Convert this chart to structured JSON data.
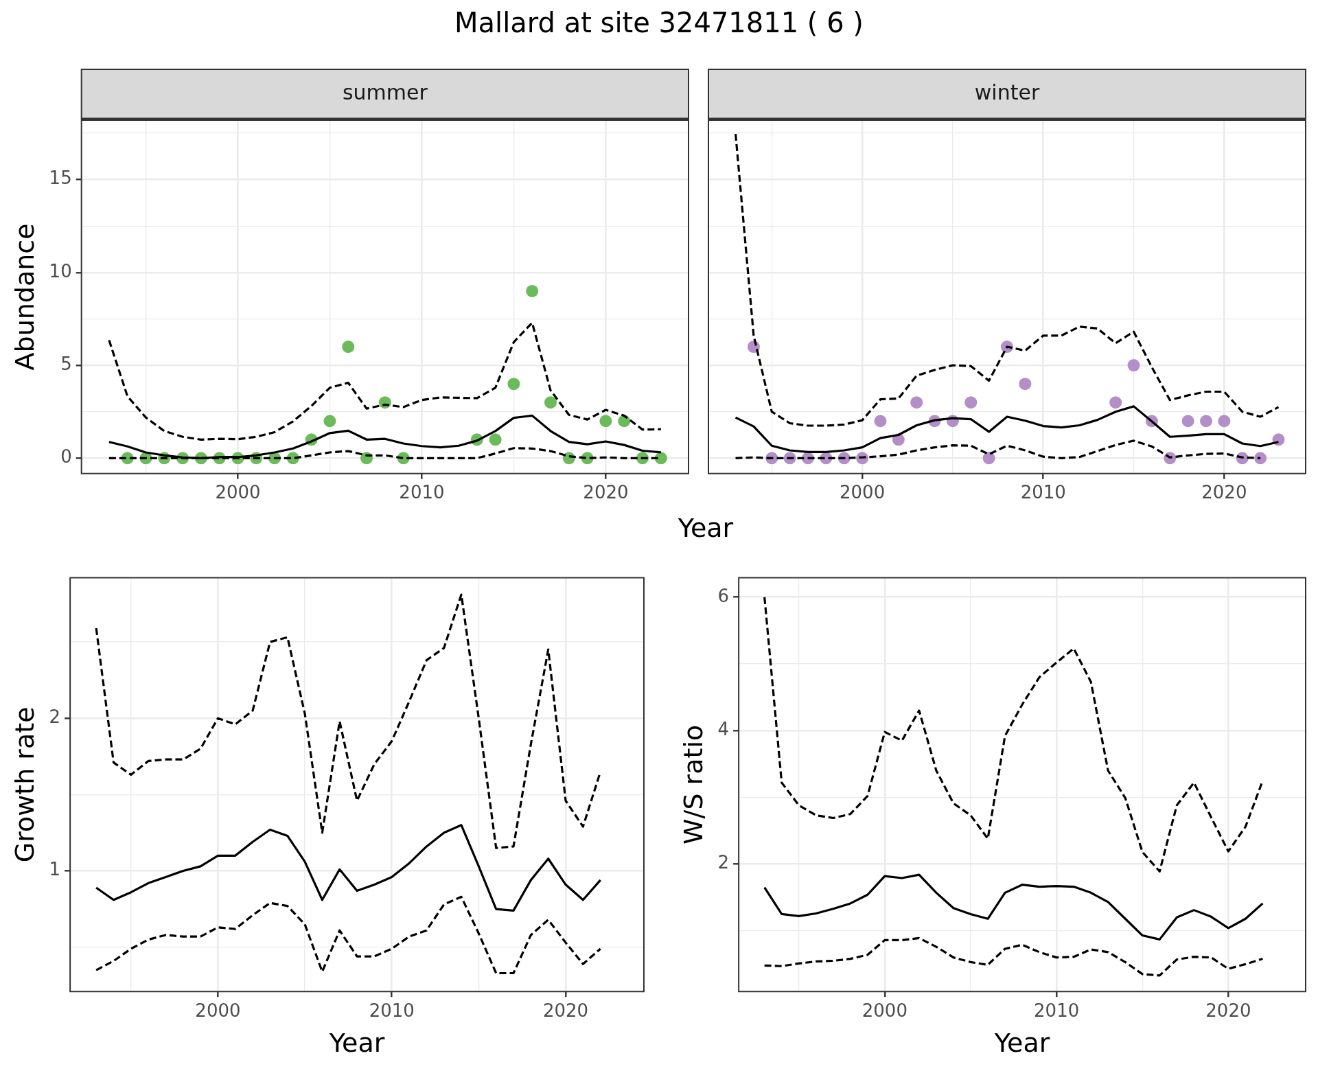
{
  "chart_data": [
    {
      "type": "line",
      "title": "Mallard at site 32471811 ( 6 )",
      "subtitle": "summer",
      "xlabel": "Year",
      "ylabel": "Abundance",
      "grid": true,
      "x": [
        1993,
        1994,
        1995,
        1996,
        1997,
        1998,
        1999,
        2000,
        2001,
        2002,
        2003,
        2004,
        2005,
        2006,
        2007,
        2008,
        2009,
        2010,
        2011,
        2012,
        2013,
        2014,
        2015,
        2016,
        2017,
        2018,
        2019,
        2020,
        2021,
        2022,
        2023
      ],
      "xlim": [
        1991.5,
        2024.5
      ],
      "xticks": [
        {
          "value": 1995,
          "label": null
        },
        2000,
        {
          "value": 2005,
          "label": null
        },
        2010,
        {
          "value": 2015,
          "label": null
        },
        2020
      ],
      "ylim": [
        -0.83,
        18.2
      ],
      "yticks": [
        0,
        {
          "value": 2.5,
          "label": null
        },
        5,
        {
          "value": 7.5,
          "label": null
        },
        10,
        {
          "value": 12.5,
          "label": null
        },
        15,
        {
          "value": 17.5,
          "label": null
        }
      ],
      "series": [
        {
          "type": "scatter",
          "marker": "circle",
          "color": "#6cbb5a",
          "values": [
            null,
            0,
            0,
            0,
            0,
            0,
            0,
            0,
            0,
            0,
            0,
            1,
            2,
            6,
            0,
            3,
            0,
            null,
            null,
            null,
            1,
            1,
            4,
            9,
            3,
            0,
            0,
            2,
            2,
            0,
            0
          ]
        },
        {
          "line_style": "solid",
          "color": "#000000",
          "values": [
            0.87,
            0.63,
            0.31,
            0.15,
            0.04,
            0,
            0.06,
            0.06,
            0.15,
            0.31,
            0.52,
            0.9,
            1.35,
            1.48,
            1.0,
            1.04,
            0.79,
            0.65,
            0.58,
            0.67,
            0.94,
            1.46,
            2.17,
            2.29,
            1.46,
            0.88,
            0.75,
            0.9,
            0.71,
            0.4,
            0.31
          ]
        },
        {
          "line_style": "dashed",
          "color": "#000000",
          "values": [
            6.35,
            3.33,
            2.19,
            1.46,
            1.15,
            1.0,
            1.04,
            1.02,
            1.15,
            1.4,
            1.98,
            2.81,
            3.79,
            4.06,
            2.67,
            2.88,
            2.75,
            3.13,
            3.27,
            3.25,
            3.23,
            3.79,
            6.25,
            7.29,
            3.65,
            2.33,
            2.08,
            2.6,
            2.29,
            1.54,
            1.56
          ]
        },
        {
          "line_style": "dashed",
          "color": "#000000",
          "values": [
            0,
            0,
            0,
            0,
            0,
            0,
            0,
            0,
            0,
            0,
            0,
            0.15,
            0.31,
            0.38,
            0.15,
            0.15,
            0,
            0,
            0,
            0,
            0,
            0.25,
            0.54,
            0.52,
            0.38,
            0.1,
            0,
            0.04,
            0,
            0,
            0
          ]
        }
      ]
    },
    {
      "type": "line",
      "subtitle": "winter",
      "grid": true,
      "tick_labels": "x",
      "x": [
        1993,
        1994,
        1995,
        1996,
        1997,
        1998,
        1999,
        2000,
        2001,
        2002,
        2003,
        2004,
        2005,
        2006,
        2007,
        2008,
        2009,
        2010,
        2011,
        2012,
        2013,
        2014,
        2015,
        2016,
        2017,
        2018,
        2019,
        2020,
        2021,
        2022,
        2023
      ],
      "xlim": [
        1991.5,
        2024.5
      ],
      "xticks": [
        {
          "value": 1995,
          "label": null
        },
        2000,
        {
          "value": 2005,
          "label": null
        },
        2010,
        {
          "value": 2015,
          "label": null
        },
        2020
      ],
      "ylim": [
        -0.83,
        18.2
      ],
      "yticks": [
        0,
        {
          "value": 2.5,
          "label": null
        },
        5,
        {
          "value": 7.5,
          "label": null
        },
        10,
        {
          "value": 12.5,
          "label": null
        },
        15,
        {
          "value": 17.5,
          "label": null
        }
      ],
      "series": [
        {
          "type": "scatter",
          "marker": "circle",
          "color": "#b48ec8",
          "values": [
            null,
            6,
            0,
            0,
            0,
            0,
            0,
            0,
            2,
            1,
            3,
            2,
            2,
            3,
            0,
            6,
            4,
            null,
            null,
            null,
            null,
            3,
            5,
            2,
            0,
            2,
            2,
            2,
            0,
            0,
            1
          ]
        },
        {
          "line_style": "solid",
          "color": "#000000",
          "values": [
            2.19,
            1.71,
            0.67,
            0.42,
            0.33,
            0.33,
            0.42,
            0.58,
            1.08,
            1.25,
            1.77,
            2.04,
            2.15,
            2.1,
            1.42,
            2.23,
            2.02,
            1.73,
            1.65,
            1.77,
            2.06,
            2.5,
            2.79,
            1.98,
            1.15,
            1.21,
            1.29,
            1.29,
            0.79,
            0.65,
            0.87
          ]
        },
        {
          "line_style": "dashed",
          "color": "#000000",
          "values": [
            17.46,
            6.6,
            2.5,
            1.88,
            1.75,
            1.75,
            1.81,
            2.04,
            3.17,
            3.21,
            4.44,
            4.75,
            5.0,
            4.96,
            4.17,
            6.0,
            5.79,
            6.6,
            6.6,
            7.08,
            6.98,
            6.19,
            6.81,
            4.9,
            3.13,
            3.38,
            3.58,
            3.58,
            2.5,
            2.23,
            2.75
          ]
        },
        {
          "line_style": "dashed",
          "color": "#000000",
          "values": [
            0,
            0.04,
            0,
            0,
            0,
            0,
            0,
            0.04,
            0.1,
            0.19,
            0.42,
            0.58,
            0.69,
            0.67,
            0.21,
            0.67,
            0.42,
            0.08,
            0,
            0.06,
            0.38,
            0.71,
            0.94,
            0.63,
            0.04,
            0.15,
            0.23,
            0.25,
            0.04,
            0,
            null
          ]
        }
      ]
    },
    {
      "type": "line",
      "xlabel": "Year",
      "ylabel": "Growth rate",
      "grid": true,
      "x": [
        1993,
        1994,
        1995,
        1996,
        1997,
        1998,
        1999,
        2000,
        2001,
        2002,
        2003,
        2004,
        2005,
        2006,
        2007,
        2008,
        2009,
        2010,
        2011,
        2012,
        2013,
        2014,
        2015,
        2016,
        2017,
        2018,
        2019,
        2020,
        2021,
        2022
      ],
      "xlim": [
        1991.5,
        2024.5
      ],
      "xticks": [
        {
          "value": 1995,
          "label": null
        },
        2000,
        {
          "value": 2005,
          "label": null
        },
        2010,
        {
          "value": 2015,
          "label": null
        },
        2020
      ],
      "ylim": [
        0.21,
        2.92
      ],
      "yticks": [
        {
          "value": 0.5,
          "label": null
        },
        1,
        {
          "value": 1.5,
          "label": null
        },
        2,
        {
          "value": 2.5,
          "label": null
        }
      ],
      "series": [
        {
          "line_style": "solid",
          "color": "#000000",
          "values": [
            0.89,
            0.81,
            0.86,
            0.92,
            0.96,
            1.0,
            1.03,
            1.1,
            1.1,
            1.19,
            1.27,
            1.23,
            1.06,
            0.81,
            1.01,
            0.87,
            0.91,
            0.96,
            1.05,
            1.16,
            1.25,
            1.3,
            1.03,
            0.75,
            0.74,
            0.94,
            1.08,
            0.91,
            0.81,
            0.94
          ]
        },
        {
          "line_style": "dashed",
          "color": "#000000",
          "values": [
            2.59,
            1.71,
            1.63,
            1.72,
            1.73,
            1.73,
            1.8,
            2.0,
            1.96,
            2.05,
            2.5,
            2.53,
            2.03,
            1.25,
            1.98,
            1.46,
            1.7,
            1.85,
            2.11,
            2.38,
            2.46,
            2.81,
            2.0,
            1.15,
            1.16,
            1.83,
            2.45,
            1.46,
            1.29,
            1.65
          ]
        },
        {
          "line_style": "dashed",
          "color": "#000000",
          "values": [
            0.35,
            0.41,
            0.49,
            0.55,
            0.58,
            0.57,
            0.57,
            0.63,
            0.62,
            0.71,
            0.79,
            0.77,
            0.65,
            0.34,
            0.61,
            0.44,
            0.44,
            0.49,
            0.57,
            0.61,
            0.78,
            0.83,
            0.59,
            0.33,
            0.33,
            0.58,
            0.68,
            0.53,
            0.39,
            0.49
          ]
        }
      ]
    },
    {
      "type": "line",
      "xlabel": "Year",
      "ylabel": "W/S ratio",
      "grid": true,
      "x": [
        1993,
        1994,
        1995,
        1996,
        1997,
        1998,
        1999,
        2000,
        2001,
        2002,
        2003,
        2004,
        2005,
        2006,
        2007,
        2008,
        2009,
        2010,
        2011,
        2012,
        2013,
        2014,
        2015,
        2016,
        2017,
        2018,
        2019,
        2020,
        2021,
        2022
      ],
      "xlim": [
        1991.5,
        2024.5
      ],
      "xticks": [
        {
          "value": 1995,
          "label": null
        },
        2000,
        {
          "value": 2005,
          "label": null
        },
        2010,
        {
          "value": 2015,
          "label": null
        },
        2020
      ],
      "ylim": [
        0.09,
        6.29
      ],
      "yticks": [
        {
          "value": 1,
          "label": null
        },
        2,
        {
          "value": 3,
          "label": null
        },
        4,
        {
          "value": 5,
          "label": null
        },
        6
      ],
      "series": [
        {
          "line_style": "solid",
          "color": "#000000",
          "values": [
            1.65,
            1.25,
            1.22,
            1.26,
            1.33,
            1.41,
            1.54,
            1.82,
            1.79,
            1.84,
            1.57,
            1.34,
            1.25,
            1.18,
            1.57,
            1.69,
            1.66,
            1.67,
            1.66,
            1.57,
            1.43,
            1.18,
            0.93,
            0.87,
            1.2,
            1.31,
            1.21,
            1.04,
            1.18,
            1.41
          ]
        },
        {
          "line_style": "dashed",
          "color": "#000000",
          "values": [
            6.0,
            3.22,
            2.88,
            2.73,
            2.69,
            2.75,
            3.02,
            3.98,
            3.85,
            4.3,
            3.4,
            2.91,
            2.73,
            2.38,
            3.92,
            4.39,
            4.8,
            5.02,
            5.23,
            4.73,
            3.4,
            2.99,
            2.18,
            1.89,
            2.88,
            3.22,
            2.7,
            2.19,
            2.56,
            3.25
          ]
        },
        {
          "line_style": "dashed",
          "color": "#000000",
          "values": [
            0.48,
            0.47,
            0.51,
            0.54,
            0.55,
            0.58,
            0.64,
            0.86,
            0.86,
            0.89,
            0.76,
            0.6,
            0.53,
            0.49,
            0.73,
            0.79,
            0.68,
            0.6,
            0.61,
            0.72,
            0.68,
            0.53,
            0.35,
            0.33,
            0.57,
            0.61,
            0.6,
            0.43,
            0.5,
            0.58
          ]
        }
      ]
    }
  ]
}
